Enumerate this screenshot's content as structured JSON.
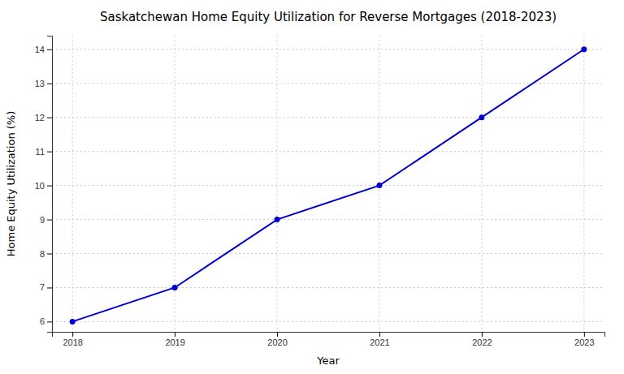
{
  "chart_data": {
    "type": "line",
    "title": "Saskatchewan Home Equity Utilization for Reverse Mortgages (2018-2023)",
    "xlabel": "Year",
    "ylabel": "Home Equity Utilization (%)",
    "x": [
      2018,
      2019,
      2020,
      2021,
      2022,
      2023
    ],
    "values": [
      6,
      7,
      9,
      10,
      12,
      14
    ],
    "color": "#0000cc",
    "marker": "circle",
    "xlim": [
      2017.8,
      2023.2
    ],
    "ylim": [
      5.7,
      14.4
    ],
    "xticks": [
      2018,
      2019,
      2020,
      2021,
      2022,
      2023
    ],
    "yticks": [
      6,
      7,
      8,
      9,
      10,
      11,
      12,
      13,
      14
    ],
    "grid": true
  }
}
